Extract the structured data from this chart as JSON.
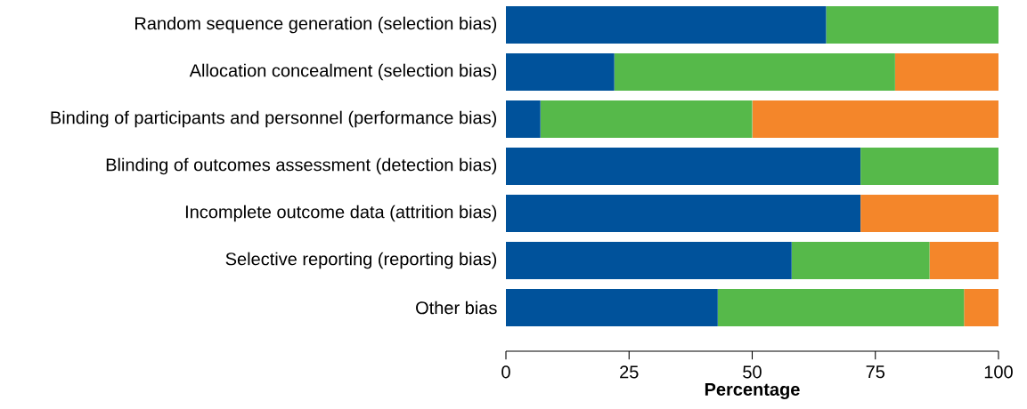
{
  "chart_data": {
    "type": "bar",
    "orientation": "horizontal",
    "stacked": true,
    "categories": [
      "Random sequence generation (selection bias)",
      "Allocation concealment (selection bias)",
      "Binding of participants and personnel (performance bias)",
      "Blinding of outcomes assessment (detection bias)",
      "Incomplete outcome data (attrition bias)",
      "Selective reporting (reporting bias)",
      "Other bias"
    ],
    "series": [
      {
        "color": "#00529b",
        "values": [
          65,
          22,
          7,
          72,
          72,
          58,
          43
        ]
      },
      {
        "color": "#56b94a",
        "values": [
          35,
          57,
          43,
          28,
          0,
          28,
          50
        ]
      },
      {
        "color": "#f4862a",
        "values": [
          0,
          21,
          50,
          0,
          28,
          14,
          7
        ]
      }
    ],
    "xlim": [
      0,
      100
    ],
    "xticks": [
      0,
      25,
      50,
      75,
      100
    ],
    "xlabel": "Percentage",
    "grid": false
  }
}
